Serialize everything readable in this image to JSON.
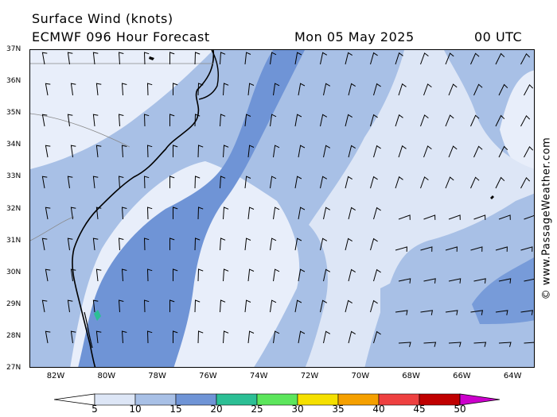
{
  "header": {
    "title": "Surface Wind (knots)",
    "model": "ECMWF 096 Hour Forecast",
    "date": "Mon 05 May 2025",
    "time": "00 UTC"
  },
  "map": {
    "lat_labels": [
      "37N",
      "36N",
      "35N",
      "34N",
      "33N",
      "32N",
      "31N",
      "30N",
      "29N",
      "28N",
      "27N"
    ],
    "lon_labels": [
      "82W",
      "80W",
      "78W",
      "76W",
      "74W",
      "72W",
      "70W",
      "68W",
      "66W",
      "64W"
    ],
    "lat_range": [
      27,
      37
    ],
    "lon_range": [
      -83,
      -63
    ]
  },
  "colorbar": {
    "labels": [
      "5",
      "10",
      "15",
      "20",
      "25",
      "30",
      "35",
      "40",
      "45",
      "50"
    ],
    "colors": [
      "#ffffff",
      "#dde6f6",
      "#a8c0e6",
      "#6f94d6",
      "#2cbf95",
      "#5ce65c",
      "#f5e000",
      "#f5a000",
      "#ee4040",
      "#c00000",
      "#cc00cc"
    ]
  },
  "credit": "© www.PassageWeather.com"
}
